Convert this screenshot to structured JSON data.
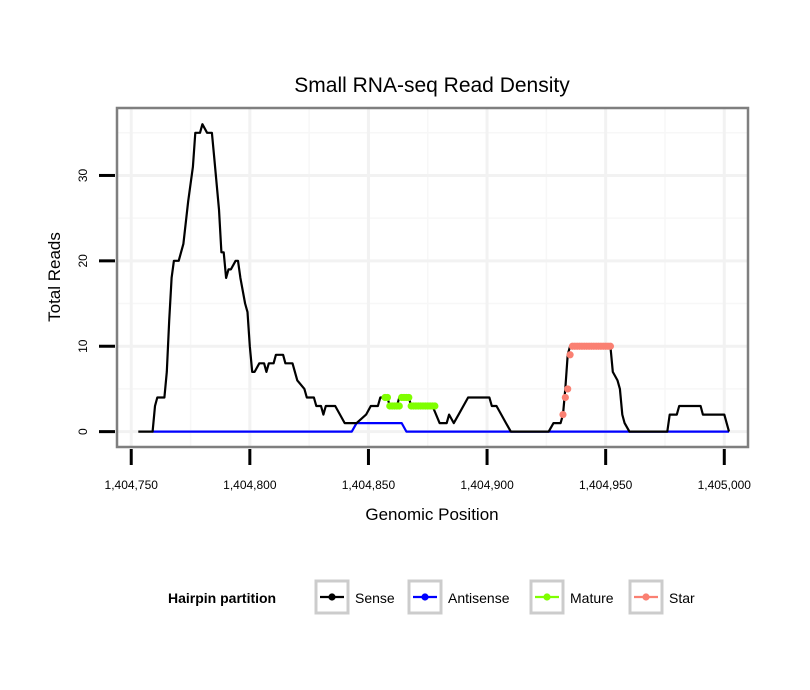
{
  "chart_data": {
    "type": "line",
    "title": "Small RNA-seq Read Density",
    "xlabel": "Genomic Position",
    "ylabel": "Total Reads",
    "xlim": [
      1404744,
      1405010
    ],
    "ylim": [
      -1.8,
      37.9
    ],
    "grid": true,
    "x_ticks": [
      1404750,
      1404800,
      1404850,
      1404900,
      1404950,
      1405000
    ],
    "x_tick_labels": [
      "1,404,750",
      "1,404,800",
      "1,404,850",
      "1,404,900",
      "1,404,950",
      "1,405,000"
    ],
    "y_ticks": [
      0,
      10,
      20,
      30
    ],
    "y_tick_labels": [
      "0",
      "10",
      "20",
      "30"
    ],
    "legend": {
      "title": "Hairpin partition",
      "placement": "bottom",
      "entries": [
        {
          "label": "Sense",
          "color": "#000000"
        },
        {
          "label": "Antisense",
          "color": "#0000ff"
        },
        {
          "label": "Mature",
          "color": "#7fff00"
        },
        {
          "label": "Star",
          "color": "#fa8072"
        }
      ]
    },
    "series": [
      {
        "name": "Sense",
        "color": "#000000",
        "style": "line",
        "x": [
          1404753,
          1404759,
          1404760,
          1404761,
          1404764,
          1404765,
          1404766,
          1404767,
          1404768,
          1404770,
          1404772,
          1404774,
          1404776,
          1404777,
          1404779,
          1404780,
          1404782,
          1404784,
          1404785,
          1404787,
          1404788,
          1404789,
          1404790,
          1404791,
          1404792,
          1404794,
          1404795,
          1404796,
          1404798,
          1404799,
          1404800,
          1404801,
          1404802,
          1404804,
          1404806,
          1404807,
          1404808,
          1404810,
          1404811,
          1404814,
          1404815,
          1404818,
          1404820,
          1404823,
          1404824,
          1404827,
          1404828,
          1404830,
          1404831,
          1404832,
          1404836,
          1404838,
          1404840,
          1404845,
          1404849,
          1404851,
          1404854,
          1404855,
          1404858,
          1404859,
          1404862,
          1404863,
          1404867,
          1404868,
          1404873,
          1404877,
          1404880,
          1404882,
          1404883,
          1404884,
          1404886,
          1404888,
          1404892,
          1404901,
          1404902,
          1404904,
          1404906,
          1404908,
          1404910,
          1404912,
          1404914,
          1404916,
          1404922,
          1404924,
          1404926,
          1404928,
          1404930,
          1404931,
          1404932,
          1404933,
          1404934,
          1404935,
          1404936,
          1404937,
          1404952,
          1404953,
          1404955,
          1404956,
          1404957,
          1404958,
          1404960,
          1404961,
          1404975,
          1404976,
          1404977,
          1404980,
          1404981,
          1404987,
          1404990,
          1404991,
          1404996,
          1405000,
          1405002
        ],
        "y": [
          0,
          0,
          3,
          4,
          4,
          7,
          13,
          18,
          20,
          20,
          22,
          27,
          31,
          35,
          35,
          36,
          35,
          35,
          32,
          26,
          21,
          21,
          18,
          19,
          19,
          20,
          20,
          18,
          15,
          14,
          10,
          7,
          7,
          8,
          8,
          7,
          8,
          8,
          9,
          9,
          8,
          8,
          6,
          5,
          4,
          4,
          3,
          3,
          2,
          3,
          3,
          2,
          1,
          1,
          2,
          3,
          3,
          4,
          4,
          3,
          3,
          4,
          4,
          3,
          3,
          3,
          1,
          1,
          1,
          2,
          1,
          2,
          4,
          4,
          3,
          3,
          2,
          1,
          0,
          0,
          0,
          0,
          0,
          0,
          0,
          1,
          1,
          1,
          2,
          5,
          9,
          10,
          10,
          10,
          10,
          7,
          6,
          5,
          2,
          1,
          0,
          0,
          0,
          0,
          2,
          2,
          3,
          3,
          3,
          2,
          2,
          2,
          0
        ]
      },
      {
        "name": "Antisense",
        "color": "#0000ff",
        "style": "line",
        "x": [
          1404759,
          1404843,
          1404845,
          1404864,
          1404866,
          1404928,
          1404930,
          1404976,
          1404978,
          1405002
        ],
        "y": [
          0,
          0,
          1,
          1,
          0,
          0,
          0,
          0,
          0,
          0
        ]
      },
      {
        "name": "Mature",
        "color": "#7fff00",
        "style": "points",
        "x": [
          1404857,
          1404858,
          1404859,
          1404860,
          1404861,
          1404862,
          1404863,
          1404864,
          1404865,
          1404866,
          1404867,
          1404868,
          1404869,
          1404870,
          1404871,
          1404872,
          1404873,
          1404874,
          1404875,
          1404876,
          1404877,
          1404878
        ],
        "y": [
          4,
          4,
          3,
          3,
          3,
          3,
          3,
          4,
          4,
          4,
          4,
          3,
          3,
          3,
          3,
          3,
          3,
          3,
          3,
          3,
          3,
          3
        ]
      },
      {
        "name": "Star",
        "color": "#fa8072",
        "style": "points",
        "x": [
          1404932,
          1404933,
          1404934,
          1404935,
          1404936,
          1404937,
          1404938,
          1404939,
          1404940,
          1404941,
          1404942,
          1404943,
          1404944,
          1404945,
          1404946,
          1404947,
          1404948,
          1404949,
          1404950,
          1404951,
          1404952
        ],
        "y": [
          2,
          4,
          5,
          9,
          10,
          10,
          10,
          10,
          10,
          10,
          10,
          10,
          10,
          10,
          10,
          10,
          10,
          10,
          10,
          10,
          10
        ]
      }
    ]
  }
}
